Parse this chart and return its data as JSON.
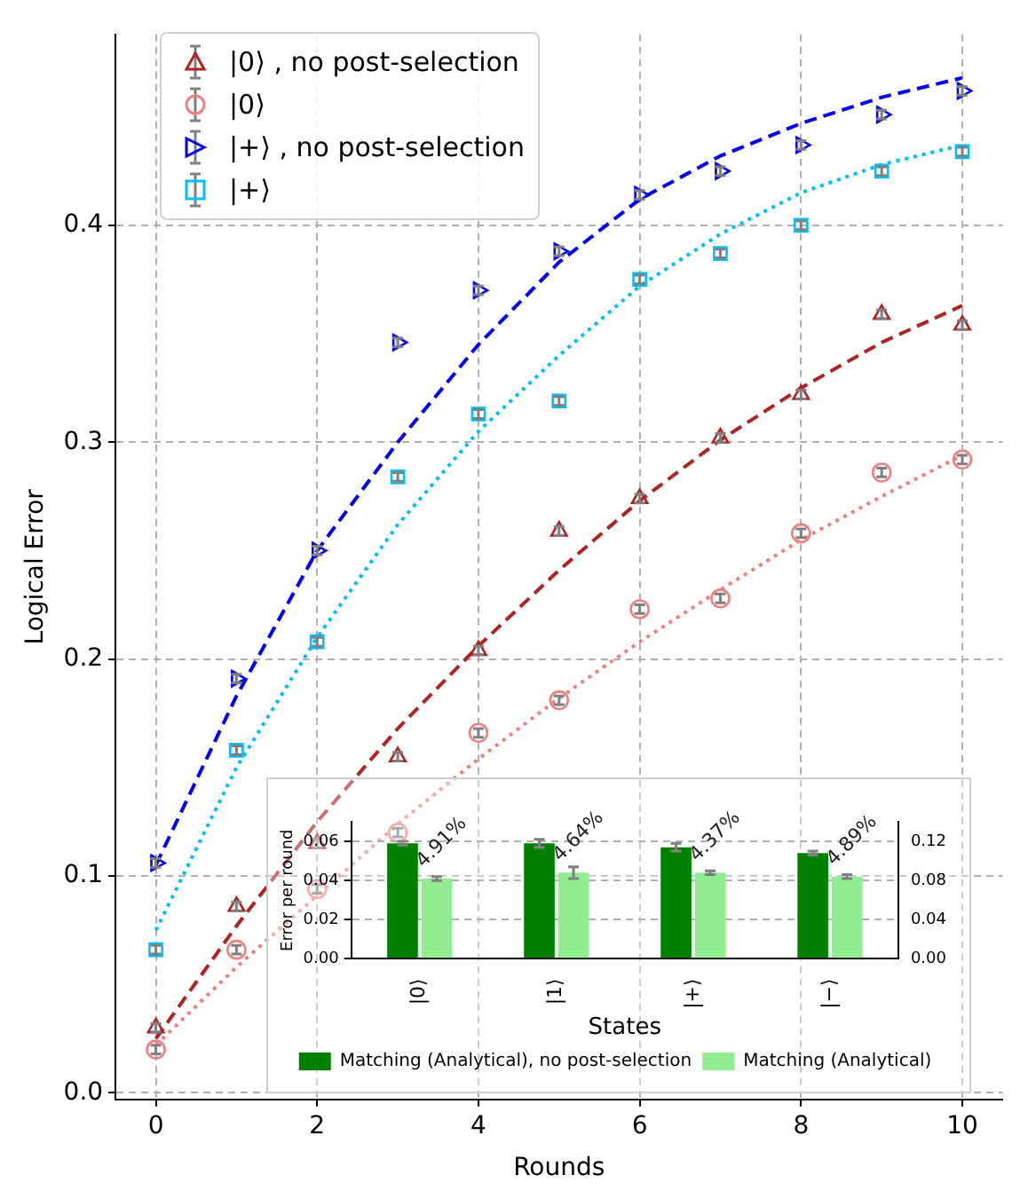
{
  "chart_data": [
    {
      "type": "scatter",
      "xlabel": "Rounds",
      "ylabel": "Logical Error",
      "x": [
        0,
        1,
        2,
        3,
        4,
        5,
        6,
        7,
        8,
        9,
        10
      ],
      "xlim": [
        -0.5,
        10.5
      ],
      "ylim": [
        -0.003,
        0.488
      ],
      "xticks": [
        0,
        2,
        4,
        6,
        8,
        10
      ],
      "yticks": [
        {
          "value": 0,
          "label": "0.0"
        },
        0.1,
        0.2,
        0.3,
        0.4
      ],
      "grid": true,
      "legend": "top left",
      "series": [
        {
          "name": "|0⟩ , no post-selection",
          "color": "#b22222",
          "marker": "triangle",
          "values": [
            0.03,
            0.086,
            0.115,
            0.155,
            0.204,
            0.259,
            0.274,
            0.302,
            0.322,
            0.359,
            0.354
          ],
          "errors": [
            0.002,
            0.002,
            0.002,
            0.002,
            0.002,
            0.002,
            0.002,
            0.002,
            0.002,
            0.002,
            0.002
          ]
        },
        {
          "name": "|0⟩",
          "color": "#f08080",
          "marker": "circle",
          "values": [
            0.02,
            0.066,
            0.094,
            0.12,
            0.166,
            0.181,
            0.223,
            0.228,
            0.258,
            0.286,
            0.292
          ],
          "errors": [
            0.002,
            0.002,
            0.002,
            0.002,
            0.002,
            0.002,
            0.002,
            0.002,
            0.002,
            0.002,
            0.002
          ]
        },
        {
          "name": "|+⟩ , no post-selection",
          "color": "#0000ff",
          "marker": "triangle-right",
          "values": [
            0.106,
            0.191,
            0.25,
            0.346,
            0.37,
            0.388,
            0.414,
            0.425,
            0.437,
            0.451,
            0.462
          ],
          "errors": [
            0.002,
            0.002,
            0.002,
            0.002,
            0.002,
            0.002,
            0.002,
            0.002,
            0.002,
            0.002,
            0.002
          ]
        },
        {
          "name": "|+⟩",
          "color": "#00bfff",
          "marker": "square",
          "values": [
            0.066,
            0.158,
            0.208,
            0.284,
            0.313,
            0.319,
            0.375,
            0.387,
            0.4,
            0.425,
            0.434
          ],
          "errors": [
            0.002,
            0.002,
            0.002,
            0.002,
            0.002,
            0.002,
            0.002,
            0.002,
            0.002,
            0.002,
            0.002
          ]
        },
        {
          "type": "line",
          "color": "#b22222",
          "line_style": "dashed",
          "marker": "none",
          "values": [
            0.025,
            0.077,
            0.125,
            0.168,
            0.206,
            0.241,
            0.273,
            0.301,
            0.325,
            0.346,
            0.363
          ]
        },
        {
          "type": "line",
          "color": "#f08080",
          "line_style": "dotted",
          "marker": "none",
          "values": [
            0.022,
            0.058,
            0.091,
            0.124,
            0.154,
            0.182,
            0.208,
            0.232,
            0.255,
            0.275,
            0.294
          ]
        },
        {
          "type": "line",
          "color": "#0000ff",
          "line_style": "dashed",
          "marker": "none",
          "values": [
            0.105,
            0.183,
            0.25,
            0.3,
            0.345,
            0.383,
            0.412,
            0.432,
            0.447,
            0.459,
            0.468
          ]
        },
        {
          "type": "line",
          "color": "#00bfff",
          "line_style": "dotted",
          "marker": "none",
          "values": [
            0.075,
            0.15,
            0.21,
            0.262,
            0.305,
            0.34,
            0.372,
            0.396,
            0.415,
            0.428,
            0.437
          ]
        }
      ]
    },
    {
      "type": "bar",
      "xlabel": "States",
      "ylabel": "Error per round",
      "categories": [
        "|0⟩",
        "|1⟩",
        "|+⟩",
        "|−⟩"
      ],
      "ylim": [
        0,
        0.07
      ],
      "yticks": [
        {
          "value": 0,
          "label": "0.00"
        },
        {
          "value": 0.02,
          "label": "0.02"
        },
        {
          "value": 0.04,
          "label": "0.04"
        },
        {
          "value": 0.06,
          "label": "0.06"
        }
      ],
      "y2lim": [
        0,
        0.14
      ],
      "y2ticks": [
        {
          "value": 0,
          "label": "0.00"
        },
        {
          "value": 0.04,
          "label": "0.04"
        },
        {
          "value": 0.08,
          "label": "0.08"
        },
        {
          "value": 0.12,
          "label": "0.12"
        }
      ],
      "grid": "y",
      "legend": "bottom",
      "series": [
        {
          "name": "Matching (Analytical), no post-selection",
          "color": "#008000",
          "values": [
            0.059,
            0.059,
            0.057,
            0.054
          ],
          "errors": [
            0.001,
            0.002,
            0.002,
            0.001
          ]
        },
        {
          "name": "Matching (Analytical)",
          "color": "#90ee90",
          "values": [
            0.041,
            0.044,
            0.044,
            0.042
          ],
          "errors": [
            0.001,
            0.003,
            0.001,
            0.001
          ]
        }
      ],
      "annotations": [
        {
          "text": "4.91%",
          "x": "|0⟩",
          "y": 0.041
        },
        {
          "text": "4.64%",
          "x": "|1⟩",
          "y": 0.044
        },
        {
          "text": "4.37%",
          "x": "|+⟩",
          "y": 0.044
        },
        {
          "text": "4.89%",
          "x": "|−⟩",
          "y": 0.042
        }
      ]
    }
  ]
}
